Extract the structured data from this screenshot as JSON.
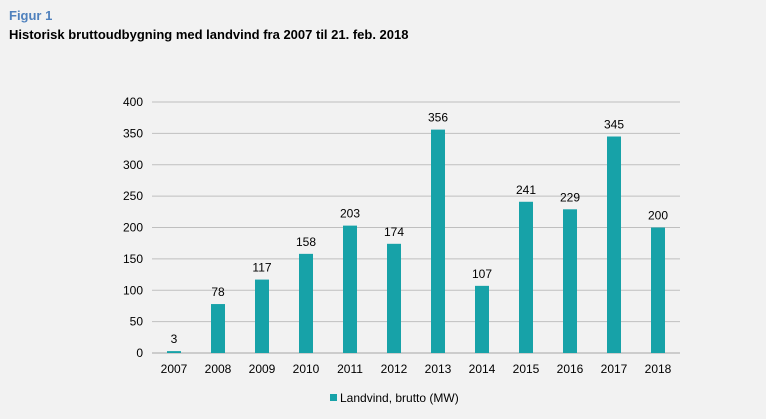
{
  "figure": {
    "label": "Figur 1",
    "title": "Historisk bruttoudbygning med landvind fra 2007 til 21. feb. 2018"
  },
  "chart_data": {
    "type": "bar",
    "categories": [
      "2007",
      "2008",
      "2009",
      "2010",
      "2011",
      "2012",
      "2013",
      "2014",
      "2015",
      "2016",
      "2017",
      "2018"
    ],
    "series": [
      {
        "name": "Landvind, brutto (MW)",
        "values": [
          3,
          78,
          117,
          158,
          203,
          174,
          356,
          107,
          241,
          229,
          345,
          200
        ],
        "color": "#17a2a8"
      }
    ],
    "ylim": [
      0,
      400
    ],
    "yticks": [
      0,
      50,
      100,
      150,
      200,
      250,
      300,
      350,
      400
    ],
    "grid": true,
    "data_labels": true,
    "legend_position": "bottom"
  }
}
